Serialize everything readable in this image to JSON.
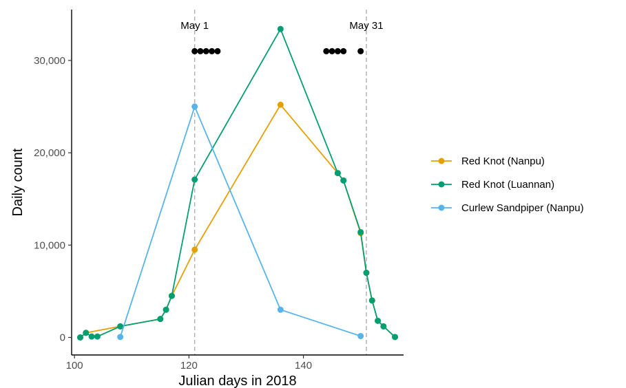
{
  "chart_data": {
    "type": "line",
    "xlabel": "Julian days in 2018",
    "ylabel": "Daily count",
    "xlim": [
      99.5,
      157.5
    ],
    "ylim": [
      -1900,
      35500
    ],
    "x_ticks": [
      100,
      120,
      140
    ],
    "x_tick_labels": [
      "100",
      "120",
      "140"
    ],
    "y_ticks": [
      0,
      10000,
      20000,
      30000
    ],
    "y_tick_labels": [
      "0",
      "10,000",
      "20,000",
      "30,000"
    ],
    "grid": false,
    "legend_position": "right",
    "series": [
      {
        "name": "Red Knot (Nanpu)",
        "color": "#E69F00",
        "x": [
          101,
          102,
          108,
          115,
          116,
          117,
          121,
          136,
          146,
          147,
          150,
          151,
          152,
          153,
          154,
          156
        ],
        "y": [
          0,
          500,
          1200,
          2000,
          3000,
          4500,
          9500,
          25200,
          17800,
          17000,
          11300,
          7000,
          4000,
          1800,
          1200,
          50
        ]
      },
      {
        "name": "Red Knot (Luannan)",
        "color": "#009E73",
        "x": [
          101,
          102,
          103,
          104,
          108,
          115,
          116,
          117,
          121,
          136,
          146,
          147,
          150,
          151,
          152,
          153,
          154,
          156
        ],
        "y": [
          0,
          500,
          100,
          100,
          1200,
          2000,
          3000,
          4500,
          17100,
          33400,
          17800,
          17000,
          11400,
          7000,
          4000,
          1800,
          1200,
          50
        ]
      },
      {
        "name": "Curlew Sandpiper (Nanpu)",
        "color": "#56B4E9",
        "x": [
          108,
          121,
          136,
          150
        ],
        "y": [
          50,
          25000,
          3000,
          150
        ]
      }
    ],
    "reference_lines": [
      {
        "x": 121,
        "label": "May 1"
      },
      {
        "x": 151,
        "label": "May 31"
      }
    ],
    "event_markers": {
      "y": 31000,
      "color": "#000000",
      "x": [
        121,
        122,
        123,
        124,
        125,
        144,
        145,
        146,
        147,
        150
      ]
    }
  }
}
